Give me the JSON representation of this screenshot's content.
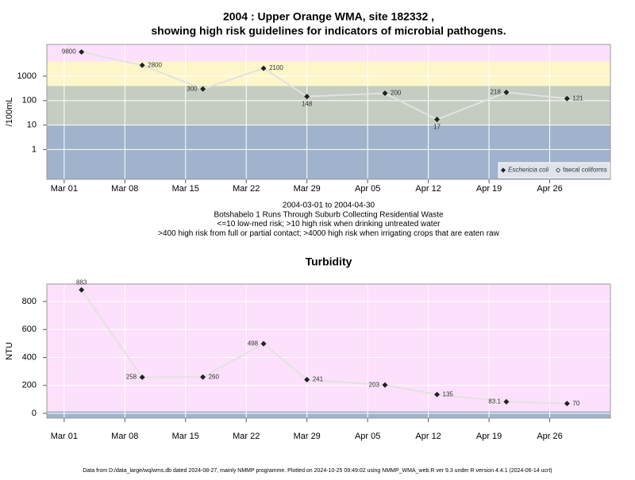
{
  "chart_data": [
    {
      "type": "line",
      "title": [
        "2004 : Upper Orange WMA, site 182332 ,",
        "showing high risk guidelines for indicators of microbial pathogens."
      ],
      "y_label": "/100mL",
      "log_y": true,
      "grid": true,
      "notes": [
        "2004-03-01 to 2004-04-30",
        "Botshabelo 1 Runs Through Suburb Collecting Residential Waste",
        "<=10 low-med risk; >10 high risk when drinking untreated water",
        ">400 high risk from full or partial contact; >4000 high risk when irrigating crops that are eaten raw"
      ],
      "x": [
        "2004-03-03",
        "2004-03-10",
        "2004-03-17",
        "2004-03-24",
        "2004-03-29",
        "2004-04-07",
        "2004-04-13",
        "2004-04-21",
        "2004-04-28"
      ],
      "series": [
        {
          "name": "Eschericia coli",
          "color": "#222222",
          "values": [
            9800,
            2800,
            300,
            2100,
            148,
            200,
            17,
            218,
            121
          ]
        },
        {
          "name": "faecal coliforms",
          "color": "#222222",
          "values": [
            null,
            null,
            null,
            null,
            null,
            null,
            null,
            null,
            null
          ]
        }
      ],
      "line_color": "#e2e2e2",
      "thresholds": [
        10,
        400,
        4000
      ],
      "band_colors": [
        "#a1b2cc",
        "#c5cdc2",
        "#fdf6c9",
        "#fde0fb"
      ],
      "legend": "bottom-right",
      "xlim": [
        "2004-02-28",
        "2004-05-03"
      ],
      "xticks": [
        {
          "value": "2004-03-01",
          "label": "Mar 01"
        },
        {
          "value": "2004-03-08",
          "label": "Mar 08"
        },
        {
          "value": "2004-03-15",
          "label": "Mar 15"
        },
        {
          "value": "2004-03-22",
          "label": "Mar 22"
        },
        {
          "value": "2004-03-29",
          "label": "Mar 29"
        },
        {
          "value": "2004-04-05",
          "label": "Apr 05"
        },
        {
          "value": "2004-04-12",
          "label": "Apr 12"
        },
        {
          "value": "2004-04-19",
          "label": "Apr 19"
        },
        {
          "value": "2004-04-26",
          "label": "Apr 26"
        }
      ],
      "ylim": [
        0.06,
        20000
      ],
      "yticks": [
        1,
        10,
        100,
        1000
      ]
    },
    {
      "type": "line",
      "title": [
        "Turbidity"
      ],
      "y_label": "NTU",
      "log_y": false,
      "grid": true,
      "x": [
        "2004-03-03",
        "2004-03-10",
        "2004-03-17",
        "2004-03-24",
        "2004-03-29",
        "2004-04-07",
        "2004-04-13",
        "2004-04-21",
        "2004-04-28"
      ],
      "series": [
        {
          "name": "Turbidity",
          "color": "#222222",
          "values": [
            883,
            258,
            260,
            498,
            241,
            203,
            135,
            83.1,
            70
          ]
        }
      ],
      "line_color": "#e2e2e2",
      "thresholds": [
        15
      ],
      "band_colors": [
        "#a1b2cc",
        "#fde0fb"
      ],
      "xlim": [
        "2004-02-28",
        "2004-05-03"
      ],
      "xticks": [
        {
          "value": "2004-03-01",
          "label": "Mar 01"
        },
        {
          "value": "2004-03-08",
          "label": "Mar 08"
        },
        {
          "value": "2004-03-15",
          "label": "Mar 15"
        },
        {
          "value": "2004-03-22",
          "label": "Mar 22"
        },
        {
          "value": "2004-03-29",
          "label": "Mar 29"
        },
        {
          "value": "2004-04-05",
          "label": "Apr 05"
        },
        {
          "value": "2004-04-12",
          "label": "Apr 12"
        },
        {
          "value": "2004-04-19",
          "label": "Apr 19"
        },
        {
          "value": "2004-04-26",
          "label": "Apr 26"
        }
      ],
      "ylim": [
        -34,
        925
      ],
      "yticks": [
        0,
        200,
        400,
        600,
        800
      ]
    }
  ],
  "footer": "Data from D:/data_large/wq/wms.db dated 2024-08-27, mainly NMMP programme. Plotted on 2024-10-25 09:49:02 using NMMP_WMA_web.R ver 9.3 under R version 4.4.1 (2024-06-14 ucrt)"
}
